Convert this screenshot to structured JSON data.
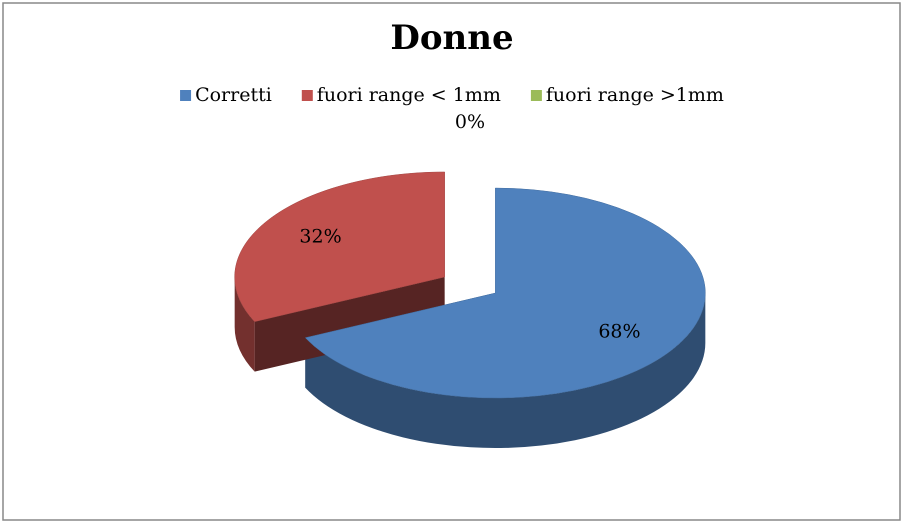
{
  "chart_data": {
    "type": "pie",
    "title": "Donne",
    "categories": [
      "Corretti",
      "fuori range < 1mm",
      "fuori range >1mm"
    ],
    "values": [
      68,
      32,
      0
    ],
    "value_labels": [
      "68%",
      "32%",
      "0%"
    ],
    "colors": [
      "#4f81bd",
      "#c0504d",
      "#9bbb59"
    ],
    "legend": "top"
  }
}
